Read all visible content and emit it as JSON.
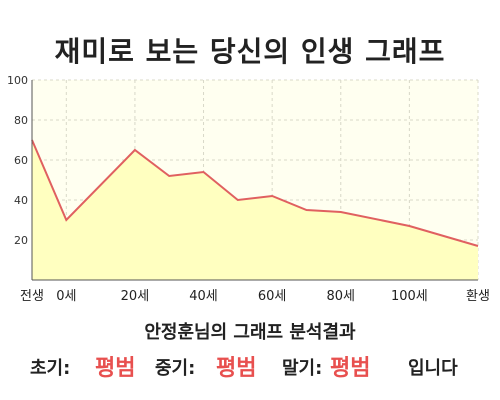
{
  "title": "재미로 보는 당신의 인생 그래프",
  "chart_data": {
    "type": "area",
    "x": [
      -10,
      0,
      20,
      30,
      40,
      50,
      60,
      70,
      80,
      100,
      120
    ],
    "y": [
      70,
      30,
      65,
      52,
      54,
      40,
      42,
      35,
      34,
      27,
      17
    ],
    "xticks": [
      {
        "value": -10,
        "label": "전생"
      },
      {
        "value": 0,
        "label": "0세"
      },
      {
        "value": 20,
        "label": "20세"
      },
      {
        "value": 40,
        "label": "40세"
      },
      {
        "value": 60,
        "label": "60세"
      },
      {
        "value": 80,
        "label": "80세"
      },
      {
        "value": 100,
        "label": "100세"
      },
      {
        "value": 120,
        "label": "환생"
      }
    ],
    "yticks": [
      "20",
      "40",
      "60",
      "80",
      "100"
    ],
    "ylim": [
      0,
      100
    ],
    "xlim": [
      -10,
      120
    ],
    "grid": true,
    "colors": {
      "line": "#e06060",
      "fill": "#ffffc0",
      "plot_bg": "#fffff0"
    }
  },
  "summary": {
    "title": "안정훈님의 그래프 분석결과",
    "early_label": "초기:",
    "early_value": "평범",
    "mid_label": "중기:",
    "mid_value": "평범",
    "late_label": "말기:",
    "late_value": "평범",
    "suffix": "입니다"
  }
}
